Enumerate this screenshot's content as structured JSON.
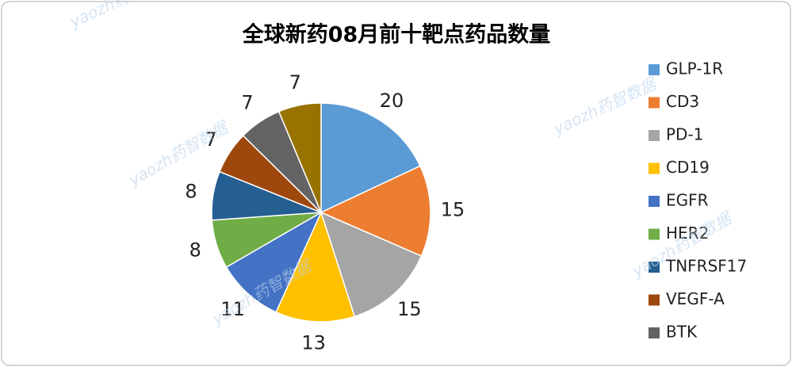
{
  "chart_data": {
    "type": "pie",
    "title": "全球新药08月前十靶点药品数量",
    "categories": [
      "GLP-1R",
      "CD3",
      "PD-1",
      "CD19",
      "EGFR",
      "HER2",
      "TNFRSF17",
      "VEGF-A",
      "BTK",
      null
    ],
    "values": [
      20,
      15,
      15,
      13,
      11,
      8,
      8,
      7,
      7,
      7
    ],
    "colors": [
      "#5b9bd5",
      "#ed7d31",
      "#a5a5a5",
      "#ffc000",
      "#4472c4",
      "#70ad47",
      "#255e91",
      "#9e480e",
      "#636363",
      "#997300"
    ],
    "legend": "right",
    "watermark": "yaozh药智数据"
  }
}
